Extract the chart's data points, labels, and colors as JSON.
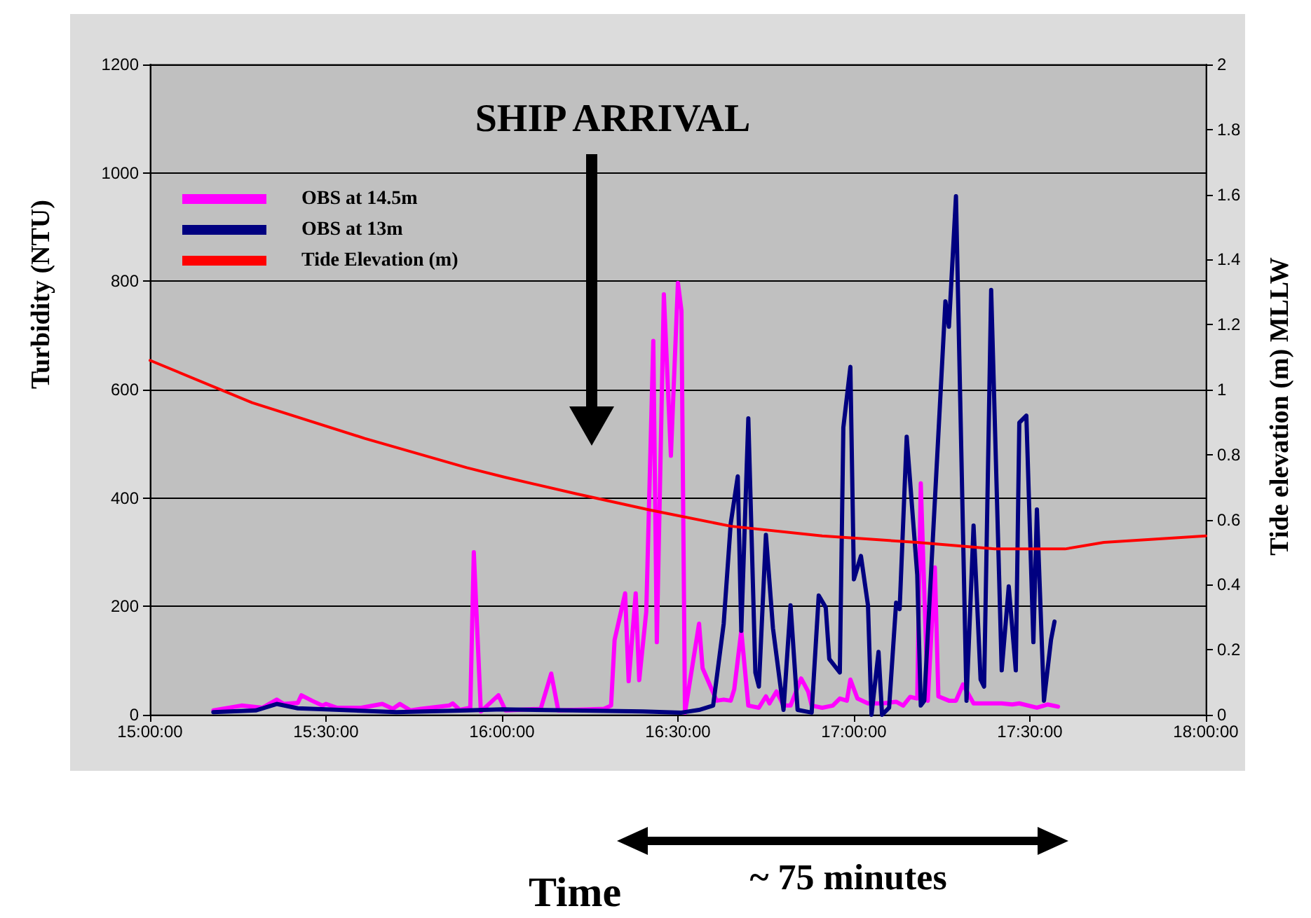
{
  "chart_data": {
    "type": "line",
    "xlabel": "Time",
    "ylabel": "Turbidity (NTU)",
    "y2label": "Tide elevation (m) MLLW",
    "xlim": [
      15,
      18
    ],
    "xticks": [
      {
        "value": 15,
        "label": "15:00:00"
      },
      {
        "value": 15.5,
        "label": "15:30:00"
      },
      {
        "value": 16,
        "label": "16:00:00"
      },
      {
        "value": 16.5,
        "label": "16:30:00"
      },
      {
        "value": 17,
        "label": "17:00:00"
      },
      {
        "value": 17.5,
        "label": "17:30:00"
      },
      {
        "value": 18,
        "label": "18:00:00"
      }
    ],
    "ylim": [
      0,
      1200
    ],
    "yticks": [
      0,
      200,
      400,
      600,
      800,
      1000,
      1200
    ],
    "y2lim": [
      0,
      2
    ],
    "y2ticks": [
      0,
      0.2,
      0.4,
      0.6,
      0.8,
      1,
      1.2,
      1.4,
      1.6,
      1.8,
      2
    ],
    "grid": "y",
    "legend": "top left",
    "marker": "none",
    "line_style": "solid",
    "annotations": [
      "SHIP ARRIVAL",
      "~ 75 minutes"
    ],
    "series": [
      {
        "name": "OBS at 14.5m",
        "color": "#ff00ff",
        "x": [
          15.18,
          15.26,
          15.32,
          15.36,
          15.38,
          15.42,
          15.43,
          15.46,
          15.49,
          15.5,
          15.53,
          15.6,
          15.66,
          15.69,
          15.71,
          15.74,
          15.77,
          15.85,
          15.86,
          15.88,
          15.91,
          15.92,
          15.94,
          15.99,
          16.01,
          16.11,
          16.14,
          16.16,
          16.29,
          16.31,
          16.32,
          16.35,
          16.36,
          16.38,
          16.39,
          16.41,
          16.43,
          16.44,
          16.46,
          16.48,
          16.5,
          16.51,
          16.52,
          16.56,
          16.57,
          16.61,
          16.63,
          16.65,
          16.66,
          16.68,
          16.7,
          16.73,
          16.75,
          16.76,
          16.78,
          16.8,
          16.82,
          16.85,
          16.87,
          16.88,
          16.91,
          16.94,
          16.96,
          16.98,
          16.99,
          17.01,
          17.04,
          17.08,
          17.12,
          17.14,
          17.16,
          17.18,
          17.19,
          17.21,
          17.23,
          17.24,
          17.27,
          17.29,
          17.31,
          17.34,
          17.42,
          17.45,
          17.47,
          17.52,
          17.55,
          17.58
        ],
        "values": [
          8,
          17,
          13,
          28,
          20,
          22,
          36,
          26,
          17,
          20,
          13,
          13,
          20,
          11,
          20,
          8,
          11,
          17,
          21,
          9,
          13,
          300,
          6,
          36,
          8,
          11,
          76,
          8,
          11,
          17,
          138,
          224,
          62,
          224,
          64,
          190,
          690,
          134,
          776,
          478,
          797,
          746,
          4,
          168,
          86,
          26,
          28,
          26,
          47,
          155,
          17,
          13,
          34,
          21,
          43,
          17,
          17,
          67,
          43,
          17,
          13,
          17,
          30,
          26,
          65,
          30,
          21,
          21,
          24,
          17,
          33,
          30,
          427,
          26,
          272,
          34,
          26,
          26,
          56,
          21,
          21,
          19,
          21,
          13,
          19,
          15
        ]
      },
      {
        "name": "OBS at 13m",
        "color": "#000080",
        "x": [
          15.18,
          15.3,
          15.36,
          15.42,
          15.5,
          15.7,
          15.9,
          16,
          16.2,
          16.4,
          16.51,
          16.56,
          16.6,
          16.63,
          16.65,
          16.67,
          16.68,
          16.7,
          16.72,
          16.73,
          16.75,
          16.77,
          16.8,
          16.82,
          16.84,
          16.88,
          16.9,
          16.92,
          16.93,
          16.96,
          16.97,
          16.99,
          17,
          17.02,
          17.04,
          17.05,
          17.07,
          17.08,
          17.1,
          17.12,
          17.13,
          17.15,
          17.18,
          17.19,
          17.2,
          17.26,
          17.27,
          17.29,
          17.32,
          17.34,
          17.36,
          17.37,
          17.39,
          17.42,
          17.44,
          17.46,
          17.47,
          17.49,
          17.51,
          17.52,
          17.54,
          17.56,
          17.57
        ],
        "values": [
          5,
          8,
          20,
          12,
          10,
          5,
          8,
          10,
          8,
          6,
          4,
          9,
          17,
          168,
          353,
          440,
          155,
          547,
          78,
          52,
          332,
          160,
          9,
          202,
          9,
          4,
          220,
          198,
          103,
          78,
          530,
          642,
          250,
          293,
          202,
          0,
          116,
          0,
          13,
          207,
          195,
          513,
          258,
          17,
          26,
          763,
          716,
          957,
          26,
          349,
          65,
          52,
          784,
          82,
          237,
          82,
          539,
          552,
          134,
          379,
          26,
          138,
          172
        ]
      },
      {
        "name": "Tide Elevation (m)",
        "color": "#ff0000",
        "axis": "y2",
        "x": [
          15,
          15.29,
          15.61,
          15.9,
          16.01,
          16.21,
          16.42,
          16.65,
          16.91,
          17.18,
          17.4,
          17.6,
          17.71,
          18
        ],
        "values": [
          1.09,
          0.96,
          0.85,
          0.76,
          0.73,
          0.68,
          0.63,
          0.58,
          0.55,
          0.53,
          0.51,
          0.51,
          0.53,
          0.55
        ]
      }
    ]
  }
}
